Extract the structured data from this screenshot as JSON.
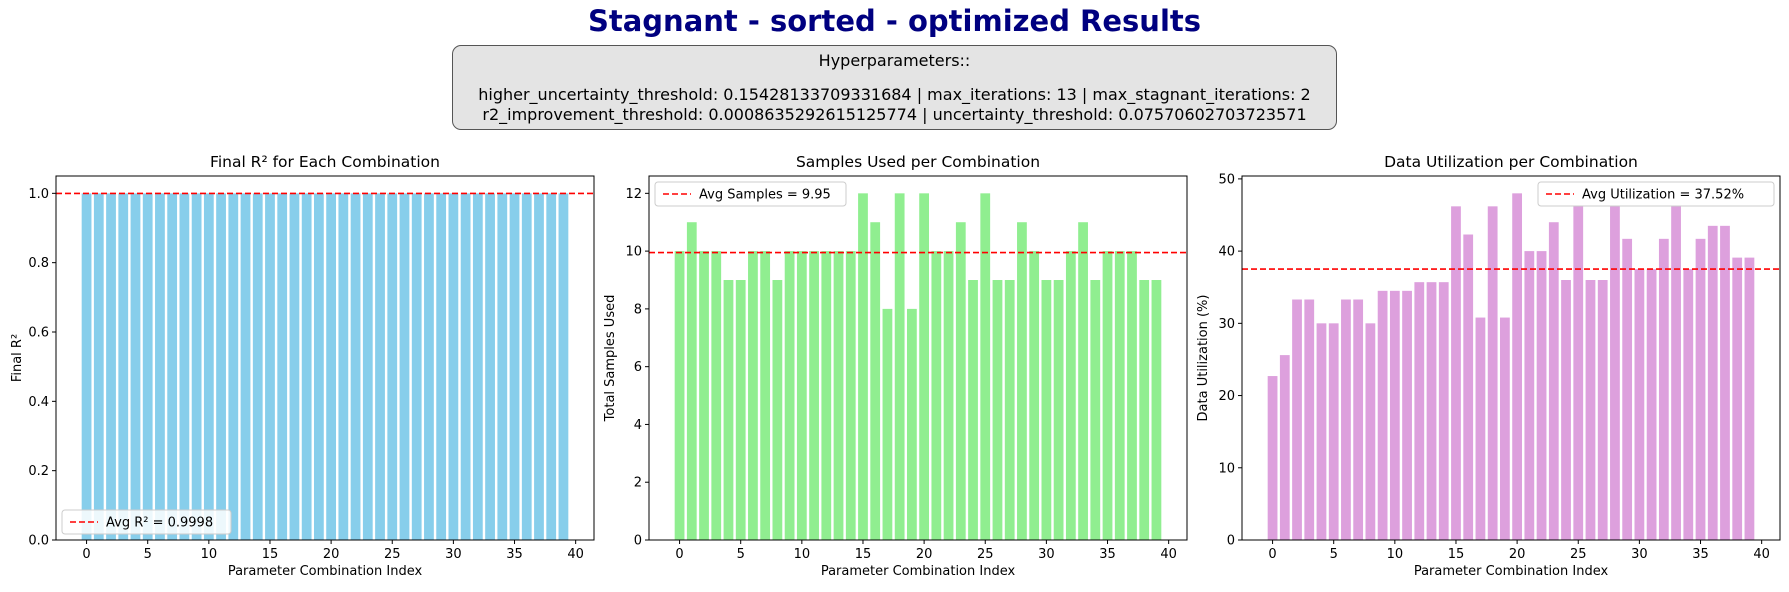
{
  "title": "Stagnant - sorted - optimized Results",
  "hyperparameters": {
    "header": "Hyperparameters::",
    "line1": "higher_uncertainty_threshold: 0.15428133709331684 | max_iterations: 13 | max_stagnant_iterations: 2",
    "line2": "r2_improvement_threshold: 0.0008635292615125774 | uncertainty_threshold: 0.07570602703723571"
  },
  "colors": {
    "r2": "#87ceeb",
    "samples": "#90ee90",
    "util": "#dda0dd",
    "avg_line": "#ff0000",
    "title": "#000080"
  },
  "chart_data": [
    {
      "type": "bar",
      "title": "Final R² for Each Combination",
      "xlabel": "Parameter Combination Index",
      "ylabel": "Final R²",
      "x": [
        0,
        1,
        2,
        3,
        4,
        5,
        6,
        7,
        8,
        9,
        10,
        11,
        12,
        13,
        14,
        15,
        16,
        17,
        18,
        19,
        20,
        21,
        22,
        23,
        24,
        25,
        26,
        27,
        28,
        29,
        30,
        31,
        32,
        33,
        34,
        35,
        36,
        37,
        38,
        39
      ],
      "values": [
        0.9998,
        0.9998,
        0.9998,
        0.9998,
        0.9998,
        0.9998,
        0.9998,
        0.9998,
        0.9998,
        0.9998,
        0.9998,
        0.9998,
        0.9998,
        0.9998,
        0.9998,
        0.9998,
        0.9998,
        0.9998,
        0.9998,
        0.9998,
        0.9998,
        0.9998,
        0.9998,
        0.9998,
        0.9998,
        0.9998,
        0.9998,
        0.9998,
        0.9998,
        0.9998,
        0.9998,
        0.9998,
        0.9998,
        0.9998,
        0.9998,
        0.9998,
        0.9998,
        0.9998,
        0.9998,
        0.9998
      ],
      "xlim": [
        -2.5,
        41.5
      ],
      "ylim": [
        0,
        1.05
      ],
      "xticks": [
        0,
        5,
        10,
        15,
        20,
        25,
        30,
        35,
        40
      ],
      "yticks": [
        0.0,
        0.2,
        0.4,
        0.6,
        0.8,
        1.0
      ],
      "ytick_labels": [
        "0.0",
        "0.2",
        "0.4",
        "0.6",
        "0.8",
        "1.0"
      ],
      "avg_line": {
        "value": 0.9998,
        "label": "Avg R² = 0.9998"
      },
      "legend": "lower-left"
    },
    {
      "type": "bar",
      "title": "Samples Used per Combination",
      "xlabel": "Parameter Combination Index",
      "ylabel": "Total Samples Used",
      "x": [
        0,
        1,
        2,
        3,
        4,
        5,
        6,
        7,
        8,
        9,
        10,
        11,
        12,
        13,
        14,
        15,
        16,
        17,
        18,
        19,
        20,
        21,
        22,
        23,
        24,
        25,
        26,
        27,
        28,
        29,
        30,
        31,
        32,
        33,
        34,
        35,
        36,
        37,
        38,
        39
      ],
      "values": [
        10,
        11,
        10,
        10,
        9,
        9,
        10,
        10,
        9,
        10,
        10,
        10,
        10,
        10,
        10,
        12,
        11,
        8,
        12,
        8,
        12,
        10,
        10,
        11,
        9,
        12,
        9,
        9,
        11,
        10,
        9,
        9,
        10,
        11,
        9,
        10,
        10,
        10,
        9,
        9
      ],
      "xlim": [
        -2.5,
        41.5
      ],
      "ylim": [
        0,
        12.6
      ],
      "xticks": [
        0,
        5,
        10,
        15,
        20,
        25,
        30,
        35,
        40
      ],
      "yticks": [
        0,
        2,
        4,
        6,
        8,
        10,
        12
      ],
      "ytick_labels": [
        "0",
        "2",
        "4",
        "6",
        "8",
        "10",
        "12"
      ],
      "avg_line": {
        "value": 9.95,
        "label": "Avg Samples = 9.95"
      },
      "legend": "upper-left"
    },
    {
      "type": "bar",
      "title": "Data Utilization per Combination",
      "xlabel": "Parameter Combination Index",
      "ylabel": "Data Utilization (%)",
      "x": [
        0,
        1,
        2,
        3,
        4,
        5,
        6,
        7,
        8,
        9,
        10,
        11,
        12,
        13,
        14,
        15,
        16,
        17,
        18,
        19,
        20,
        21,
        22,
        23,
        24,
        25,
        26,
        27,
        28,
        29,
        30,
        31,
        32,
        33,
        34,
        35,
        36,
        37,
        38,
        39
      ],
      "values": [
        22.7,
        25.6,
        33.3,
        33.3,
        30.0,
        30.0,
        33.3,
        33.3,
        30.0,
        34.5,
        34.5,
        34.5,
        35.7,
        35.7,
        35.7,
        46.2,
        42.3,
        30.8,
        46.2,
        30.8,
        48.0,
        40.0,
        40.0,
        44.0,
        36.0,
        46.2,
        36.0,
        36.0,
        46.2,
        41.7,
        37.5,
        37.5,
        41.7,
        46.2,
        37.5,
        41.7,
        43.5,
        43.5,
        39.1,
        39.1
      ],
      "xlim": [
        -2.5,
        41.5
      ],
      "ylim": [
        0,
        50.4
      ],
      "xticks": [
        0,
        5,
        10,
        15,
        20,
        25,
        30,
        35,
        40
      ],
      "yticks": [
        0,
        10,
        20,
        30,
        40,
        50
      ],
      "ytick_labels": [
        "0",
        "10",
        "20",
        "30",
        "40",
        "50"
      ],
      "avg_line": {
        "value": 37.52,
        "label": "Avg Utilization = 37.52%"
      },
      "legend": "upper-right"
    }
  ]
}
